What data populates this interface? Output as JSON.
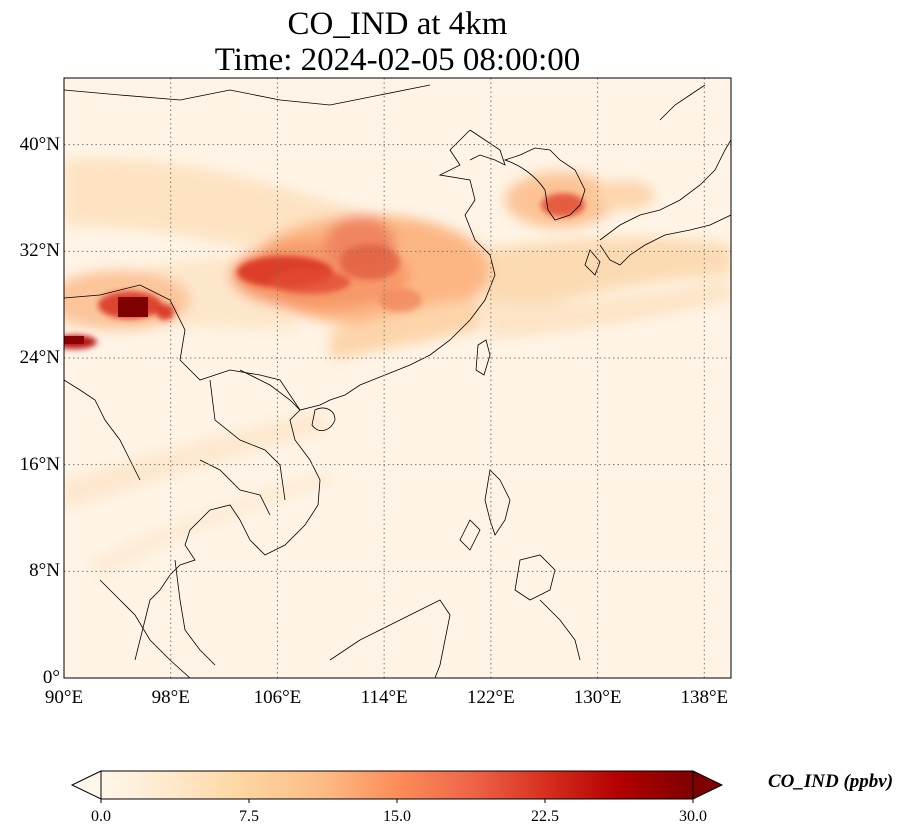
{
  "title": {
    "line1": "CO_IND at 4km",
    "line2": "Time: 2024-02-05 08:00:00"
  },
  "map": {
    "extent": {
      "lon_min": 90,
      "lon_max": 140,
      "lat_min": 0,
      "lat_max": 45
    },
    "gridlines": "dotted",
    "colormap": "OrRd",
    "lat_ticks": [
      {
        "value": 40,
        "label": "40°N"
      },
      {
        "value": 32,
        "label": "32°N"
      },
      {
        "value": 24,
        "label": "24°N"
      },
      {
        "value": 16,
        "label": "16°N"
      },
      {
        "value": 8,
        "label": "8°N"
      },
      {
        "value": 0,
        "label": "0°"
      }
    ],
    "lon_ticks": [
      {
        "value": 90,
        "label": "90°E"
      },
      {
        "value": 98,
        "label": "98°E"
      },
      {
        "value": 106,
        "label": "106°E"
      },
      {
        "value": 114,
        "label": "114°E"
      },
      {
        "value": 122,
        "label": "122°E"
      },
      {
        "value": 130,
        "label": "130°E"
      },
      {
        "value": 138,
        "label": "138°E"
      }
    ]
  },
  "colorbar": {
    "label": "CO_IND (ppbv)",
    "min": 0,
    "max": 30,
    "extend": "both",
    "colors": [
      "#fff7ec",
      "#fee8c8",
      "#fdd49e",
      "#fdbb84",
      "#fc8d59",
      "#ef6548",
      "#d7301f",
      "#b30000",
      "#7f0000"
    ],
    "ticks": [
      {
        "value": 0,
        "label": "0.0"
      },
      {
        "value": 7.5,
        "label": "7.5"
      },
      {
        "value": 15,
        "label": "15.0"
      },
      {
        "value": 22.5,
        "label": "22.5"
      },
      {
        "value": 30,
        "label": "30.0"
      }
    ]
  }
}
